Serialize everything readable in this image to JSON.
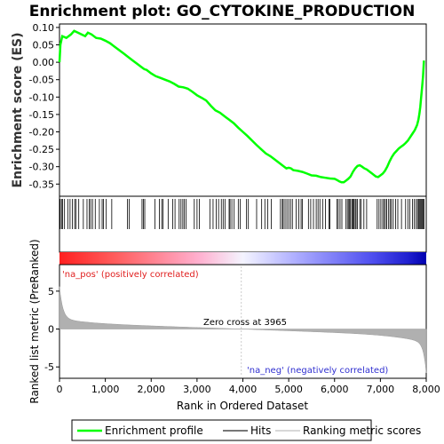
{
  "chart_data": {
    "type": "line",
    "title": "Enrichment plot: GO_CYTOKINE_PRODUCTION",
    "ylabel_es": "Enrichment score (ES)",
    "ylabel_metric": "Ranked list metric (PreRanked)",
    "xlabel": "Rank in Ordered Dataset",
    "xlim": [
      0,
      8000
    ],
    "x_ticks": [
      0,
      1000,
      2000,
      3000,
      4000,
      5000,
      6000,
      7000,
      8000
    ],
    "x_tick_labels": [
      "0",
      "1,000",
      "2,000",
      "3,000",
      "4,000",
      "5,000",
      "6,000",
      "7,000",
      "8,000"
    ],
    "es_ylim": [
      -0.385,
      0.11
    ],
    "es_ticks": [
      0.1,
      0.05,
      0.0,
      -0.05,
      -0.1,
      -0.15,
      -0.2,
      -0.25,
      -0.3,
      -0.35
    ],
    "es_tick_labels": [
      "0.10",
      "0.05",
      "0.00",
      "-0.05",
      "-0.10",
      "-0.15",
      "-0.20",
      "-0.25",
      "-0.30",
      "-0.35"
    ],
    "metric_ylim": [
      -6.5,
      8.5
    ],
    "metric_ticks": [
      5,
      0,
      -5
    ],
    "metric_tick_labels": [
      "5",
      "0",
      "-5"
    ],
    "enrichment_profile": {
      "x": [
        0,
        20,
        60,
        150,
        250,
        320,
        400,
        480,
        560,
        620,
        700,
        800,
        900,
        1000,
        1100,
        1200,
        1300,
        1400,
        1500,
        1600,
        1700,
        1800,
        1850,
        1900,
        2000,
        2100,
        2200,
        2300,
        2400,
        2500,
        2600,
        2700,
        2750,
        2800,
        2900,
        3000,
        3100,
        3200,
        3300,
        3400,
        3500,
        3600,
        3700,
        3800,
        3900,
        4000,
        4100,
        4200,
        4300,
        4400,
        4500,
        4600,
        4700,
        4800,
        4900,
        4950,
        5000,
        5050,
        5100,
        5200,
        5300,
        5400,
        5500,
        5600,
        5700,
        5800,
        5900,
        6000,
        6050,
        6100,
        6150,
        6200,
        6250,
        6300,
        6350,
        6400,
        6450,
        6500,
        6550,
        6600,
        6650,
        6700,
        6750,
        6800,
        6850,
        6900,
        6950,
        7000,
        7050,
        7100,
        7150,
        7200,
        7250,
        7300,
        7350,
        7400,
        7450,
        7500,
        7550,
        7600,
        7650,
        7700,
        7750,
        7800,
        7830,
        7850,
        7870,
        7890,
        7910,
        7930,
        7950
      ],
      "y": [
        0.0,
        0.05,
        0.075,
        0.07,
        0.08,
        0.09,
        0.085,
        0.08,
        0.075,
        0.085,
        0.08,
        0.07,
        0.068,
        0.062,
        0.055,
        0.045,
        0.035,
        0.025,
        0.015,
        0.005,
        -0.005,
        -0.015,
        -0.02,
        -0.022,
        -0.032,
        -0.04,
        -0.045,
        -0.05,
        -0.055,
        -0.062,
        -0.07,
        -0.072,
        -0.074,
        -0.076,
        -0.085,
        -0.095,
        -0.102,
        -0.11,
        -0.125,
        -0.138,
        -0.145,
        -0.155,
        -0.165,
        -0.175,
        -0.188,
        -0.2,
        -0.212,
        -0.225,
        -0.238,
        -0.25,
        -0.262,
        -0.27,
        -0.28,
        -0.29,
        -0.3,
        -0.305,
        -0.303,
        -0.305,
        -0.31,
        -0.312,
        -0.315,
        -0.32,
        -0.325,
        -0.326,
        -0.33,
        -0.332,
        -0.334,
        -0.335,
        -0.338,
        -0.342,
        -0.345,
        -0.345,
        -0.34,
        -0.335,
        -0.328,
        -0.315,
        -0.305,
        -0.298,
        -0.296,
        -0.3,
        -0.305,
        -0.308,
        -0.313,
        -0.318,
        -0.323,
        -0.328,
        -0.33,
        -0.325,
        -0.32,
        -0.312,
        -0.3,
        -0.285,
        -0.272,
        -0.262,
        -0.255,
        -0.248,
        -0.243,
        -0.238,
        -0.232,
        -0.225,
        -0.215,
        -0.205,
        -0.195,
        -0.18,
        -0.165,
        -0.148,
        -0.128,
        -0.1,
        -0.07,
        -0.04,
        0.005
      ]
    },
    "hits": [
      15,
      45,
      70,
      110,
      180,
      230,
      280,
      330,
      360,
      420,
      520,
      600,
      650,
      680,
      720,
      780,
      870,
      930,
      960,
      1020,
      1140,
      1480,
      1520,
      1800,
      1830,
      1860,
      2080,
      2180,
      2230,
      2260,
      2370,
      2470,
      2520,
      2610,
      2650,
      2690,
      2720,
      2760,
      2940,
      3000,
      3050,
      3280,
      3350,
      3420,
      3470,
      3530,
      3570,
      3610,
      3700,
      3720,
      3760,
      3810,
      3900,
      3940,
      4080,
      4120,
      4300,
      4410,
      4480,
      4540,
      4620,
      4820,
      4860,
      4880,
      4920,
      4960,
      5000,
      5040,
      5080,
      5160,
      5220,
      5270,
      5300,
      5430,
      5480,
      5540,
      5600,
      5640,
      5680,
      5740,
      5800,
      5880,
      5900,
      6050,
      6080,
      6120,
      6160,
      6250,
      6280,
      6310,
      6330,
      6350,
      6380,
      6400,
      6420,
      6450,
      6470,
      6500,
      6550,
      6580,
      6640,
      6700,
      6930,
      6970,
      7010,
      7050,
      7080,
      7110,
      7140,
      7180,
      7210,
      7240,
      7280,
      7330,
      7380,
      7460,
      7550,
      7600,
      7640,
      7700,
      7740,
      7780,
      7810,
      7830,
      7850,
      7870,
      7890,
      7910,
      7930,
      7950
    ],
    "zero_cross_rank": 3965,
    "zero_cross_label": "Zero cross at 3965",
    "pos_label": "'na_pos' (positively correlated)",
    "neg_label": "'na_neg' (negatively correlated)",
    "legend": [
      "Enrichment profile",
      "Hits",
      "Ranking metric scores"
    ],
    "colors": {
      "profile": "#00ff00",
      "hits": "#000000",
      "metric": "#b0b0b0",
      "pos": "#ff2020",
      "neg": "#1010c0"
    }
  }
}
